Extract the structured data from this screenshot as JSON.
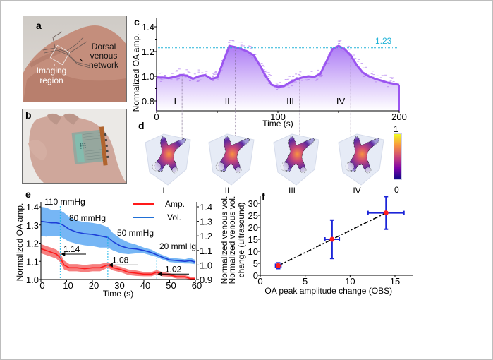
{
  "figure": {
    "panels": {
      "a": {
        "label": "a",
        "annotations": [
          "Dorsal",
          "venous",
          "network",
          "Imaging",
          "region"
        ]
      },
      "b": {
        "label": "b"
      },
      "c": {
        "label": "c"
      },
      "d": {
        "label": "d",
        "volumes": [
          "I",
          "II",
          "III",
          "IV"
        ],
        "colorbar": {
          "max_label": "1",
          "min_label": "0",
          "colors": [
            "#0d0887",
            "#7e03a8",
            "#cc4778",
            "#f89540",
            "#f0f921"
          ]
        }
      },
      "e": {
        "label": "e"
      },
      "f": {
        "label": "f"
      }
    }
  },
  "chart_data": [
    {
      "id": "c",
      "type": "area",
      "title": "",
      "xlabel": "Time (s)",
      "ylabel": "Normalized OA amp.",
      "xlim": [
        0,
        200
      ],
      "ylim": [
        0.7,
        1.45
      ],
      "xticks": [
        0,
        100,
        200
      ],
      "yticks": [
        0.8,
        1.0,
        1.2,
        1.4
      ],
      "ytick_labels": [
        "0.8",
        "1.0",
        "1.2",
        "1.4"
      ],
      "color": "#9b55f0",
      "reference_line": {
        "y": 1.23,
        "label": "1.23",
        "color": "#22b4d8"
      },
      "markers": [
        {
          "label": "I",
          "x": 21
        },
        {
          "label": "II",
          "x": 65
        },
        {
          "label": "III",
          "x": 118
        },
        {
          "label": "IV",
          "x": 160
        }
      ],
      "x": [
        0,
        5,
        10,
        15,
        20,
        25,
        30,
        35,
        40,
        45,
        50,
        55,
        60,
        65,
        70,
        75,
        80,
        85,
        90,
        95,
        100,
        105,
        110,
        115,
        120,
        125,
        130,
        135,
        140,
        145,
        150,
        155,
        160,
        165,
        170,
        175,
        180,
        185,
        190,
        195,
        200
      ],
      "y": [
        0.99,
        0.99,
        0.985,
        0.995,
        1.01,
        1.005,
        0.98,
        1.0,
        1.01,
        0.98,
        0.99,
        1.12,
        1.245,
        1.235,
        1.22,
        1.2,
        1.17,
        1.09,
        1.0,
        0.93,
        0.915,
        0.92,
        0.95,
        0.975,
        0.99,
        1.0,
        0.995,
        1.02,
        1.12,
        1.22,
        1.245,
        1.22,
        1.17,
        1.09,
        1.03,
        1.0,
        0.98,
        0.965,
        0.95,
        0.94,
        0.93
      ]
    },
    {
      "id": "e",
      "type": "line",
      "xlabel": "Time (s)",
      "ylabel": "Normalized OA amp.",
      "ylabel_right": "Normalized venous vol.",
      "xlim": [
        0,
        60
      ],
      "ylim": [
        1.0,
        1.45
      ],
      "ylim_right": [
        0.9,
        1.45
      ],
      "xticks": [
        0,
        10,
        20,
        30,
        40,
        50,
        60
      ],
      "yticks": [
        1.0,
        1.1,
        1.2,
        1.3,
        1.4
      ],
      "ytick_labels": [
        "1.0",
        "1.1",
        "1.2",
        "1.3",
        "1.4"
      ],
      "yticks_right": [
        0.9,
        1.0,
        1.1,
        1.2,
        1.3,
        1.4
      ],
      "ytick_labels_right": [
        "0.9",
        "1.0",
        "1.1",
        "1.2",
        "1.3",
        "1.4"
      ],
      "legend": {
        "placement": "top-right",
        "entries": [
          "Amp.",
          "Vol."
        ]
      },
      "x": [
        0,
        2,
        4,
        6,
        7.5,
        9,
        11,
        14,
        17,
        20,
        23,
        26,
        28,
        31,
        34,
        37,
        40,
        43,
        45,
        47,
        50,
        53,
        56,
        58,
        60
      ],
      "series": [
        {
          "name": "Amp.",
          "axis": "left",
          "color": "#ff1a1a",
          "band_color": "#f46a6a",
          "values": [
            1.17,
            1.16,
            1.15,
            1.14,
            1.12,
            1.08,
            1.065,
            1.065,
            1.06,
            1.065,
            1.065,
            1.08,
            1.065,
            1.055,
            1.04,
            1.035,
            1.03,
            1.03,
            1.04,
            1.03,
            1.025,
            1.015,
            1.015,
            1.005,
            1.005
          ],
          "band": [
            0.025,
            0.025,
            0.025,
            0.025,
            0.025,
            0.025,
            0.02,
            0.02,
            0.02,
            0.02,
            0.02,
            0.015,
            0.015,
            0.015,
            0.015,
            0.015,
            0.012,
            0.012,
            0.012,
            0.012,
            0.01,
            0.01,
            0.01,
            0.01,
            0.01
          ]
        },
        {
          "name": "Vol.",
          "axis": "right",
          "color": "#1d3fd8",
          "band_color": "#6fb2f4",
          "values": [
            1.3,
            1.295,
            1.29,
            1.29,
            1.285,
            1.27,
            1.245,
            1.225,
            1.215,
            1.21,
            1.2,
            1.19,
            1.16,
            1.13,
            1.115,
            1.11,
            1.1,
            1.085,
            1.07,
            1.055,
            1.035,
            1.03,
            1.025,
            1.03,
            1.02
          ],
          "band": [
            0.1,
            0.1,
            0.09,
            0.09,
            0.09,
            0.09,
            0.085,
            0.08,
            0.08,
            0.08,
            0.08,
            0.07,
            0.06,
            0.05,
            0.04,
            0.03,
            0.02,
            0.02,
            0.015,
            0.015,
            0.015,
            0.015,
            0.015,
            0.02,
            0.015
          ]
        }
      ],
      "pressure_steps": [
        {
          "label": "110 mmHg",
          "x": 0
        },
        {
          "label": "80 mmHg",
          "x": 7.5
        },
        {
          "label": "50 mmHg",
          "x": 26
        },
        {
          "label": "20 mmHg",
          "x": 45
        }
      ],
      "annotations": [
        {
          "text": "1.14",
          "x": 7.5,
          "y": 1.14
        },
        {
          "text": "1.08",
          "x": 26,
          "y": 1.08
        },
        {
          "text": "1.02",
          "x": 45,
          "y": 1.03
        }
      ]
    },
    {
      "id": "f",
      "type": "scatter",
      "xlabel": "OA peak amplitude change (OBS)",
      "ylabel": "Normalized venous vol. change (ultrasound)",
      "ylabel_lines": [
        "Normalized venous vol.",
        "change (ultrasound)"
      ],
      "xlim": [
        0,
        17
      ],
      "ylim": [
        0,
        33
      ],
      "xticks": [
        0,
        5,
        10,
        15
      ],
      "yticks": [
        0,
        5,
        10,
        15,
        20,
        25,
        30
      ],
      "points": [
        {
          "x": 2,
          "y": 4,
          "xerr": 0.3,
          "yerr": 1.2
        },
        {
          "x": 8,
          "y": 15,
          "xerr": 0.8,
          "yerr": 8
        },
        {
          "x": 14,
          "y": 26,
          "xerr": 2,
          "yerr": 6.8
        }
      ],
      "point_color": "#ff2020",
      "error_color": "#1c25d8",
      "fit_line": {
        "x": [
          2,
          14
        ],
        "y": [
          4,
          26
        ],
        "style": "dash-dot",
        "color": "#000000"
      }
    }
  ]
}
